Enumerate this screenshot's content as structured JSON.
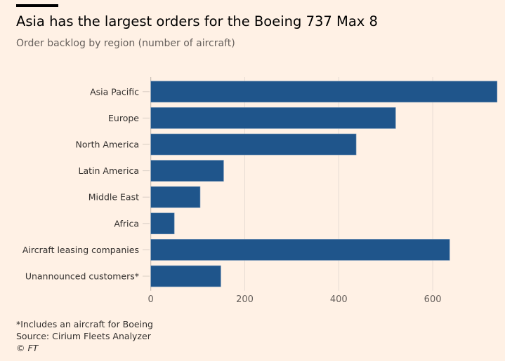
{
  "header": {
    "title": "Asia has the largest orders for the Boeing 737 Max 8",
    "subtitle": "Order backlog by region (number of aircraft)"
  },
  "footer": {
    "note": "*Includes an aircraft for Boeing",
    "source": "Source: Cirium Fleets Analyzer",
    "credit": "© FT"
  },
  "chart_data": {
    "type": "bar",
    "orientation": "horizontal",
    "title": "Asia has the largest orders for the Boeing 737 Max 8",
    "subtitle": "Order backlog by region (number of aircraft)",
    "categories": [
      "Asia Pacific",
      "Europe",
      "North America",
      "Latin America",
      "Middle East",
      "Africa",
      "Aircraft leasing companies",
      "Unannounced customers*"
    ],
    "values": [
      737,
      521,
      437,
      155,
      105,
      50,
      636,
      149
    ],
    "xticks": [
      0,
      200,
      400,
      600
    ],
    "xlim": [
      0,
      737
    ],
    "grid": true,
    "bar_color": "#1f558b"
  }
}
